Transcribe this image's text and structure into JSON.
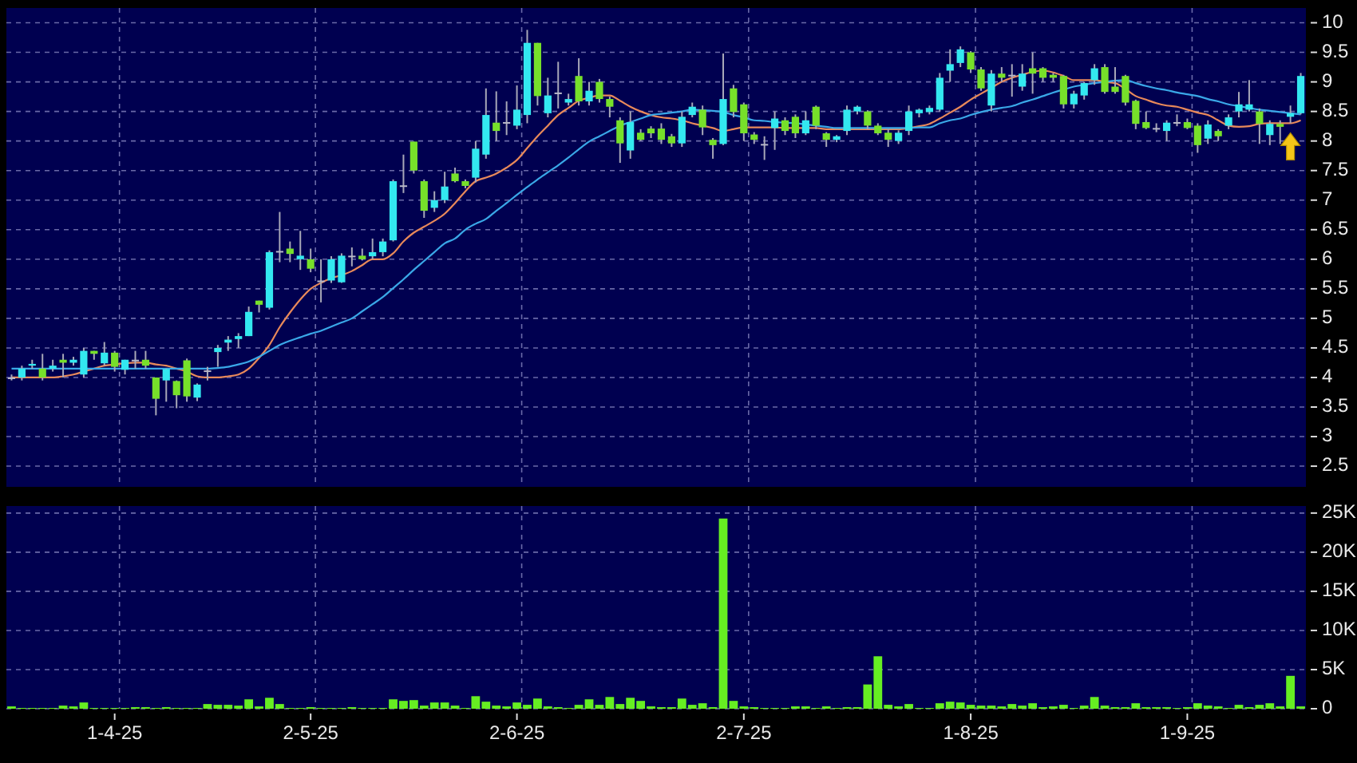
{
  "chart_data": [
    {
      "type": "candlestick",
      "tick_labels": "y",
      "grid": true,
      "categories": [
        null,
        null,
        null,
        null,
        null,
        null,
        null,
        null,
        null,
        null,
        null,
        null,
        null,
        null,
        null,
        null,
        null,
        null,
        null,
        null,
        null,
        null,
        null,
        null,
        null,
        null,
        null,
        null,
        null,
        null,
        null,
        null,
        null,
        null,
        null,
        null,
        null,
        null,
        null,
        null,
        null,
        null,
        null,
        null,
        null,
        null,
        null,
        null,
        null,
        null,
        null,
        null,
        null,
        null,
        null,
        null,
        null,
        null,
        null,
        null,
        null,
        null,
        null,
        null,
        null,
        null,
        null,
        null,
        null,
        null,
        null,
        null,
        null,
        null,
        null,
        null,
        null,
        null,
        null,
        null,
        null,
        null,
        null,
        null,
        null,
        null,
        null,
        null,
        null,
        null,
        null,
        null,
        null,
        null,
        null,
        null,
        null,
        null,
        null,
        null,
        null,
        null,
        null,
        null,
        null,
        null,
        null,
        null,
        null,
        null,
        null,
        null,
        null,
        null,
        null,
        null,
        null,
        null,
        null,
        null,
        null,
        null,
        null,
        null,
        null,
        null
      ],
      "ylim": [
        2.15,
        10.25
      ],
      "yticks": [
        2.5,
        3,
        3.5,
        4,
        4.5,
        5,
        5.5,
        6,
        6.5,
        7,
        7.5,
        8,
        8.5,
        9,
        9.5,
        10
      ],
      "ohlc": [
        [
          4.0,
          4.05,
          3.95,
          4.0
        ],
        [
          4.0,
          4.2,
          3.95,
          4.15
        ],
        [
          4.2,
          4.3,
          4.15,
          4.23
        ],
        [
          4.15,
          4.4,
          3.95,
          4.0
        ],
        [
          4.15,
          4.3,
          4.1,
          4.2
        ],
        [
          4.3,
          4.4,
          4.0,
          4.25
        ],
        [
          4.25,
          4.35,
          4.2,
          4.3
        ],
        [
          4.05,
          4.5,
          4.0,
          4.45
        ],
        [
          4.45,
          4.45,
          4.3,
          4.4
        ],
        [
          4.24,
          4.6,
          4.2,
          4.42
        ],
        [
          4.42,
          4.45,
          4.1,
          4.18
        ],
        [
          4.13,
          4.3,
          4.05,
          4.3
        ],
        [
          4.3,
          4.45,
          4.15,
          4.3
        ],
        [
          4.3,
          4.45,
          4.15,
          4.2
        ],
        [
          4.0,
          4.0,
          3.36,
          3.64
        ],
        [
          3.95,
          4.15,
          3.59,
          4.14
        ],
        [
          3.94,
          3.95,
          3.48,
          3.7
        ],
        [
          4.29,
          4.32,
          3.59,
          3.68
        ],
        [
          3.66,
          3.9,
          3.6,
          3.88
        ],
        [
          4.12,
          4.18,
          3.95,
          4.12
        ],
        [
          4.43,
          4.55,
          4.18,
          4.5
        ],
        [
          4.59,
          4.7,
          4.45,
          4.64
        ],
        [
          4.65,
          4.75,
          4.5,
          4.7
        ],
        [
          4.7,
          5.2,
          4.7,
          5.11
        ],
        [
          5.3,
          5.3,
          5.1,
          5.23
        ],
        [
          5.18,
          6.15,
          5.15,
          6.12
        ],
        [
          6.14,
          6.8,
          5.95,
          6.14
        ],
        [
          6.18,
          6.3,
          5.95,
          6.09
        ],
        [
          6.0,
          6.48,
          5.82,
          6.06
        ],
        [
          6.0,
          6.18,
          5.78,
          5.84
        ],
        [
          5.64,
          6.0,
          5.27,
          5.64
        ],
        [
          5.64,
          6.05,
          5.6,
          6.0
        ],
        [
          5.61,
          6.1,
          5.6,
          6.06
        ],
        [
          6.06,
          6.2,
          5.88,
          6.06
        ],
        [
          6.06,
          6.18,
          5.98,
          6.0
        ],
        [
          6.05,
          6.35,
          6.0,
          6.12
        ],
        [
          6.12,
          6.35,
          6.05,
          6.3
        ],
        [
          6.32,
          7.35,
          6.3,
          7.32
        ],
        [
          7.25,
          7.77,
          7.12,
          7.25
        ],
        [
          7.99,
          7.99,
          7.45,
          7.5
        ],
        [
          7.32,
          7.35,
          6.7,
          6.82
        ],
        [
          6.87,
          7.15,
          6.8,
          7.0
        ],
        [
          7.0,
          7.48,
          6.95,
          7.23
        ],
        [
          7.45,
          7.55,
          7.3,
          7.32
        ],
        [
          7.32,
          7.35,
          7.2,
          7.24
        ],
        [
          7.38,
          8.0,
          7.3,
          7.87
        ],
        [
          7.77,
          8.89,
          7.7,
          8.44
        ],
        [
          8.31,
          8.84,
          8.0,
          8.17
        ],
        [
          8.32,
          8.67,
          8.1,
          8.32
        ],
        [
          8.26,
          8.94,
          8.2,
          8.53
        ],
        [
          8.44,
          9.88,
          8.3,
          9.66
        ],
        [
          9.66,
          9.66,
          8.6,
          8.76
        ],
        [
          8.47,
          9.07,
          8.4,
          8.77
        ],
        [
          8.82,
          9.34,
          8.55,
          8.82
        ],
        [
          8.65,
          8.8,
          8.6,
          8.71
        ],
        [
          9.1,
          9.4,
          8.6,
          8.67
        ],
        [
          8.67,
          9.0,
          8.6,
          8.85
        ],
        [
          9.0,
          9.05,
          8.65,
          8.71
        ],
        [
          8.71,
          8.75,
          8.4,
          8.58
        ],
        [
          8.35,
          8.4,
          7.63,
          7.96
        ],
        [
          7.84,
          8.5,
          7.7,
          8.32
        ],
        [
          8.14,
          8.2,
          8.0,
          8.02
        ],
        [
          8.21,
          8.25,
          8.05,
          8.13
        ],
        [
          8.21,
          8.3,
          7.95,
          8.02
        ],
        [
          8.08,
          8.12,
          7.9,
          7.96
        ],
        [
          7.96,
          8.5,
          7.9,
          8.41
        ],
        [
          8.44,
          8.65,
          8.4,
          8.58
        ],
        [
          8.53,
          8.6,
          8.1,
          8.23
        ],
        [
          8.02,
          8.05,
          7.7,
          7.93
        ],
        [
          7.95,
          9.48,
          7.93,
          8.71
        ],
        [
          8.89,
          8.95,
          8.4,
          8.49
        ],
        [
          8.62,
          8.65,
          8.0,
          8.13
        ],
        [
          8.11,
          8.15,
          7.95,
          8.02
        ],
        [
          7.95,
          8.08,
          7.68,
          7.95
        ],
        [
          8.22,
          8.5,
          7.85,
          8.38
        ],
        [
          8.35,
          8.4,
          8.1,
          8.17
        ],
        [
          8.41,
          8.45,
          8.05,
          8.13
        ],
        [
          8.13,
          8.5,
          8.1,
          8.35
        ],
        [
          8.58,
          8.6,
          8.2,
          8.26
        ],
        [
          8.13,
          8.15,
          7.9,
          8.02
        ],
        [
          8.02,
          8.1,
          7.98,
          8.08
        ],
        [
          8.17,
          8.6,
          8.1,
          8.53
        ],
        [
          8.5,
          8.6,
          8.45,
          8.58
        ],
        [
          8.5,
          8.52,
          8.2,
          8.26
        ],
        [
          8.26,
          8.3,
          8.1,
          8.13
        ],
        [
          8.14,
          8.2,
          7.9,
          8.02
        ],
        [
          8.0,
          8.18,
          7.95,
          8.14
        ],
        [
          8.17,
          8.6,
          8.1,
          8.5
        ],
        [
          8.47,
          8.55,
          8.4,
          8.53
        ],
        [
          8.49,
          8.6,
          8.45,
          8.56
        ],
        [
          8.53,
          9.15,
          8.5,
          9.07
        ],
        [
          9.19,
          9.55,
          9.0,
          9.3
        ],
        [
          9.32,
          9.6,
          9.25,
          9.55
        ],
        [
          9.5,
          9.52,
          9.15,
          9.21
        ],
        [
          9.21,
          9.25,
          8.85,
          8.89
        ],
        [
          8.6,
          9.2,
          8.5,
          9.14
        ],
        [
          9.14,
          9.25,
          9.0,
          9.07
        ],
        [
          9.12,
          9.3,
          8.75,
          9.12
        ],
        [
          8.92,
          9.3,
          8.85,
          9.14
        ],
        [
          9.23,
          9.5,
          8.8,
          9.14
        ],
        [
          9.23,
          9.25,
          9.0,
          9.07
        ],
        [
          9.12,
          9.15,
          9.0,
          9.07
        ],
        [
          9.1,
          9.12,
          8.55,
          8.62
        ],
        [
          8.62,
          8.85,
          8.55,
          8.8
        ],
        [
          8.77,
          9.0,
          8.7,
          8.98
        ],
        [
          9.03,
          9.3,
          8.95,
          9.23
        ],
        [
          9.25,
          9.3,
          8.8,
          8.83
        ],
        [
          8.92,
          9.25,
          8.8,
          8.83
        ],
        [
          9.1,
          9.12,
          8.6,
          8.65
        ],
        [
          8.68,
          8.7,
          8.2,
          8.29
        ],
        [
          8.32,
          8.5,
          8.2,
          8.22
        ],
        [
          8.22,
          8.3,
          8.15,
          8.22
        ],
        [
          8.17,
          8.35,
          8.0,
          8.31
        ],
        [
          8.32,
          8.45,
          8.25,
          8.32
        ],
        [
          8.32,
          8.38,
          8.2,
          8.22
        ],
        [
          8.26,
          8.3,
          7.8,
          7.93
        ],
        [
          8.04,
          8.35,
          7.95,
          8.28
        ],
        [
          8.17,
          8.2,
          8.0,
          8.08
        ],
        [
          8.26,
          8.45,
          8.2,
          8.4
        ],
        [
          8.5,
          8.83,
          8.4,
          8.62
        ],
        [
          8.53,
          9.03,
          8.5,
          8.62
        ],
        [
          8.5,
          8.55,
          7.95,
          8.29
        ],
        [
          8.1,
          8.35,
          7.93,
          8.29
        ],
        [
          8.29,
          8.35,
          7.95,
          8.24
        ],
        [
          8.41,
          8.6,
          8.3,
          8.47
        ],
        [
          8.47,
          9.15,
          8.45,
          9.1
        ]
      ],
      "colors": [
        "#b8b8c8",
        "#33e8f0",
        "#33e8f0",
        "#77e02a",
        "#33e8f0",
        "#77e02a",
        "#33e8f0",
        "#33e8f0",
        "#77e02a",
        "#33e8f0",
        "#77e02a",
        "#33e8f0",
        "#b8b8c8",
        "#77e02a",
        "#77e02a",
        "#33e8f0",
        "#77e02a",
        "#77e02a",
        "#33e8f0",
        "#b8b8c8",
        "#33e8f0",
        "#33e8f0",
        "#33e8f0",
        "#33e8f0",
        "#77e02a",
        "#33e8f0",
        "#b8b8c8",
        "#77e02a",
        "#33e8f0",
        "#77e02a",
        "#b8b8c8",
        "#33e8f0",
        "#33e8f0",
        "#b8b8c8",
        "#77e02a",
        "#33e8f0",
        "#33e8f0",
        "#33e8f0",
        "#b8b8c8",
        "#77e02a",
        "#77e02a",
        "#33e8f0",
        "#33e8f0",
        "#77e02a",
        "#77e02a",
        "#33e8f0",
        "#33e8f0",
        "#77e02a",
        "#b8b8c8",
        "#33e8f0",
        "#33e8f0",
        "#77e02a",
        "#33e8f0",
        "#b8b8c8",
        "#33e8f0",
        "#77e02a",
        "#33e8f0",
        "#77e02a",
        "#77e02a",
        "#77e02a",
        "#33e8f0",
        "#77e02a",
        "#77e02a",
        "#77e02a",
        "#77e02a",
        "#33e8f0",
        "#33e8f0",
        "#77e02a",
        "#77e02a",
        "#33e8f0",
        "#77e02a",
        "#77e02a",
        "#77e02a",
        "#b8b8c8",
        "#33e8f0",
        "#77e02a",
        "#77e02a",
        "#33e8f0",
        "#77e02a",
        "#77e02a",
        "#33e8f0",
        "#33e8f0",
        "#33e8f0",
        "#77e02a",
        "#77e02a",
        "#77e02a",
        "#33e8f0",
        "#33e8f0",
        "#33e8f0",
        "#33e8f0",
        "#33e8f0",
        "#33e8f0",
        "#33e8f0",
        "#77e02a",
        "#77e02a",
        "#33e8f0",
        "#77e02a",
        "#b8b8c8",
        "#33e8f0",
        "#77e02a",
        "#77e02a",
        "#77e02a",
        "#77e02a",
        "#33e8f0",
        "#33e8f0",
        "#33e8f0",
        "#77e02a",
        "#77e02a",
        "#77e02a",
        "#77e02a",
        "#77e02a",
        "#b8b8c8",
        "#33e8f0",
        "#b8b8c8",
        "#77e02a",
        "#77e02a",
        "#33e8f0",
        "#77e02a",
        "#33e8f0",
        "#33e8f0",
        "#33e8f0",
        "#77e02a",
        "#33e8f0",
        "#77e02a",
        "#33e8f0",
        "#33e8f0"
      ],
      "series": [
        {
          "type": "line",
          "color": "#e8895a",
          "values": [
            4.0,
            4.0,
            4.0,
            4.0,
            4.0,
            4.02,
            4.05,
            4.1,
            4.15,
            4.2,
            4.22,
            4.24,
            4.25,
            4.25,
            4.22,
            4.2,
            4.15,
            4.1,
            4.02,
            4.0,
            4.0,
            4.02,
            4.05,
            4.15,
            4.33,
            4.55,
            4.85,
            5.1,
            5.32,
            5.5,
            5.6,
            5.68,
            5.73,
            5.8,
            5.9,
            6.0,
            6.0,
            6.1,
            6.3,
            6.45,
            6.55,
            6.65,
            6.77,
            6.95,
            7.15,
            7.32,
            7.38,
            7.45,
            7.55,
            7.68,
            7.88,
            8.08,
            8.26,
            8.44,
            8.56,
            8.68,
            8.73,
            8.77,
            8.77,
            8.68,
            8.58,
            8.5,
            8.44,
            8.4,
            8.38,
            8.35,
            8.3,
            8.26,
            8.22,
            8.17,
            8.2,
            8.23,
            8.23,
            8.23,
            8.23,
            8.22,
            8.22,
            8.22,
            8.22,
            8.2,
            8.2,
            8.2,
            8.2,
            8.2,
            8.2,
            8.2,
            8.2,
            8.22,
            8.25,
            8.29,
            8.38,
            8.48,
            8.58,
            8.7,
            8.8,
            8.9,
            9.0,
            9.07,
            9.12,
            9.17,
            9.19,
            9.16,
            9.1,
            9.03,
            9.03,
            9.03,
            9.0,
            8.98,
            8.88,
            8.76,
            8.7,
            8.64,
            8.6,
            8.58,
            8.53,
            8.48,
            8.44,
            8.35,
            8.26,
            8.24,
            8.25,
            8.29,
            8.3,
            8.3,
            8.3,
            8.35
          ]
        },
        {
          "type": "line",
          "color": "#3aa8e8",
          "values": [
            4.15,
            4.15,
            4.15,
            4.15,
            4.15,
            4.15,
            4.15,
            4.15,
            4.15,
            4.15,
            4.15,
            4.15,
            4.15,
            4.15,
            4.15,
            4.15,
            4.15,
            4.15,
            4.15,
            4.15,
            4.16,
            4.18,
            4.22,
            4.27,
            4.35,
            4.45,
            4.55,
            4.62,
            4.68,
            4.74,
            4.79,
            4.86,
            4.93,
            5.0,
            5.12,
            5.24,
            5.36,
            5.51,
            5.66,
            5.82,
            5.97,
            6.12,
            6.27,
            6.35,
            6.5,
            6.6,
            6.68,
            6.82,
            6.95,
            7.09,
            7.22,
            7.35,
            7.47,
            7.59,
            7.72,
            7.86,
            7.99,
            8.08,
            8.17,
            8.26,
            8.32,
            8.38,
            8.44,
            8.46,
            8.48,
            8.5,
            8.53,
            8.52,
            8.51,
            8.49,
            8.44,
            8.4,
            8.35,
            8.34,
            8.32,
            8.31,
            8.3,
            8.28,
            8.26,
            8.24,
            8.22,
            8.22,
            8.22,
            8.22,
            8.22,
            8.22,
            8.22,
            8.22,
            8.23,
            8.23,
            8.3,
            8.35,
            8.38,
            8.44,
            8.49,
            8.53,
            8.56,
            8.59,
            8.65,
            8.7,
            8.76,
            8.82,
            8.87,
            8.92,
            8.95,
            8.98,
            9.0,
            9.02,
            9.03,
            8.98,
            8.93,
            8.89,
            8.86,
            8.82,
            8.79,
            8.76,
            8.71,
            8.67,
            8.62,
            8.59,
            8.56,
            8.53,
            8.51,
            8.49,
            8.47,
            8.45
          ]
        }
      ]
    },
    {
      "type": "bar",
      "grid": true,
      "color": "#66ee22",
      "categories": [
        null,
        null,
        null,
        null,
        null,
        null,
        null,
        null,
        null,
        null,
        "1-4-25",
        null,
        null,
        null,
        null,
        null,
        null,
        null,
        null,
        null,
        null,
        null,
        null,
        null,
        null,
        null,
        null,
        null,
        null,
        "2-5-25",
        null,
        null,
        null,
        null,
        null,
        null,
        null,
        null,
        null,
        null,
        null,
        null,
        null,
        null,
        null,
        null,
        null,
        null,
        null,
        "2-6-25",
        null,
        null,
        null,
        null,
        null,
        null,
        null,
        null,
        null,
        null,
        null,
        null,
        null,
        null,
        null,
        null,
        null,
        null,
        null,
        null,
        null,
        "2-7-25",
        null,
        null,
        null,
        null,
        null,
        null,
        null,
        null,
        null,
        null,
        null,
        null,
        null,
        null,
        null,
        null,
        null,
        null,
        null,
        null,
        null,
        "1-8-25",
        null,
        null,
        null,
        null,
        null,
        null,
        null,
        null,
        null,
        null,
        null,
        null,
        null,
        null,
        null,
        null,
        null,
        null,
        null,
        null,
        "1-9-25",
        null,
        null,
        null,
        null,
        null,
        null,
        null,
        null,
        null,
        null,
        null
      ],
      "ylim": [
        0,
        25.9
      ],
      "yticks": [
        0,
        {
          "value": 5,
          "label": "5K"
        },
        {
          "value": 10,
          "label": "10K"
        },
        {
          "value": 15,
          "label": "15K"
        },
        {
          "value": 20,
          "label": "20K"
        },
        {
          "value": 25,
          "label": "25K"
        }
      ],
      "values": [
        0.3,
        0.1,
        0.1,
        0.1,
        0.1,
        0.4,
        0.3,
        0.8,
        0.1,
        0.1,
        0.1,
        0.1,
        0.2,
        0.2,
        0.1,
        0.2,
        0.1,
        0.1,
        0.1,
        0.6,
        0.5,
        0.5,
        0.4,
        1.2,
        0.3,
        1.4,
        0.6,
        0.1,
        0.1,
        0.2,
        0.1,
        0.1,
        0.1,
        0.2,
        0.1,
        0.1,
        0.1,
        1.2,
        1.0,
        1.1,
        0.4,
        0.8,
        0.8,
        0.4,
        0.1,
        1.6,
        0.9,
        0.4,
        0.3,
        0.8,
        0.5,
        1.3,
        0.3,
        0.2,
        0.1,
        0.5,
        1.2,
        0.5,
        1.5,
        0.6,
        1.4,
        1.0,
        0.3,
        0.2,
        0.2,
        1.3,
        0.5,
        0.7,
        0.2,
        24.3,
        1.0,
        0.3,
        0.2,
        0.1,
        0.1,
        0.1,
        0.3,
        0.3,
        0.1,
        0.3,
        0.1,
        0.2,
        0.2,
        3.1,
        6.7,
        0.5,
        0.3,
        0.6,
        0.1,
        0.1,
        0.7,
        0.9,
        0.8,
        0.5,
        0.4,
        0.4,
        0.3,
        0.6,
        0.4,
        0.7,
        0.2,
        0.3,
        0.5,
        0.1,
        0.4,
        1.5,
        0.4,
        0.2,
        0.2,
        0.7,
        0.2,
        0.2,
        0.2,
        0.1,
        0.2,
        0.7,
        0.4,
        0.3,
        0.1,
        0.5,
        0.2,
        0.5,
        0.7,
        0.3,
        4.2,
        0.3
      ]
    }
  ]
}
